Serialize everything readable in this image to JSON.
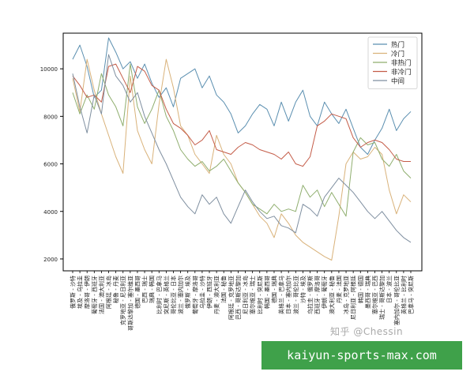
{
  "chart_data": {
    "type": "line",
    "ylim": [
      1500,
      11500
    ],
    "yticks": [
      2000,
      4000,
      6000,
      8000,
      10000
    ],
    "grid": false,
    "legend_position": "top-right",
    "categories": [
      "俄罗斯 - 沙特",
      "埃及 - 乌拉圭",
      "摩洛哥 - 伊朗",
      "葡萄牙 - 西班牙",
      "法国 - 澳大利亚",
      "阿根廷 - 冰岛",
      "秘鲁 - 丹麦",
      "克罗地亚 - 尼日利亚",
      "哥斯达黎加 - 塞尔维亚",
      "德国 - 墨西哥",
      "巴西 - 瑞士",
      "瑞典 - 韩国",
      "比利时 - 巴拿马",
      "突尼斯 - 英格兰",
      "哥伦比亚 - 日本",
      "波兰 - 塞内加尔",
      "俄罗斯 - 埃及",
      "葡萄牙 - 摩洛哥",
      "乌拉圭 - 沙特",
      "伊朗 - 西班牙",
      "丹麦 - 澳大利亚",
      "法国 - 秘鲁",
      "阿根廷 - 克罗地亚",
      "巴西 - 哥斯达黎加",
      "尼日利亚 - 冰岛",
      "塞尔维亚 - 瑞士",
      "比利时 - 突尼斯",
      "韩国 - 墨西哥",
      "德国 - 瑞典",
      "英格兰 - 巴拿马",
      "日本 - 塞内加尔",
      "波兰 - 哥伦比亚",
      "沙特 - 埃及",
      "乌拉圭 - 俄罗斯",
      "西班牙 - 摩洛哥",
      "伊朗 - 葡萄牙",
      "澳大利亚 - 秘鲁",
      "丹麦 - 法国",
      "冰岛 - 克罗地亚",
      "尼日利亚 - 阿根廷",
      "韩国 - 德国",
      "墨西哥 - 瑞典",
      "塞尔维亚 - 巴西",
      "瑞士 - 哥斯达黎加",
      "日本 - 波兰",
      "塞内加尔 - 哥伦比亚",
      "英格兰 - 比利时",
      "巴拿马 - 突尼斯"
    ],
    "series": [
      {
        "name": "热门",
        "color": "#5b8fb0",
        "values": [
          10400,
          11000,
          10100,
          8800,
          9100,
          11300,
          10700,
          10000,
          10300,
          9600,
          10200,
          9400,
          8800,
          9200,
          8400,
          9600,
          9800,
          10000,
          9200,
          9700,
          8900,
          8600,
          8100,
          7300,
          7600,
          8100,
          8500,
          8300,
          7600,
          8600,
          7800,
          8600,
          9100,
          8000,
          7600,
          8600,
          8100,
          7700,
          8300,
          7500,
          6700,
          6400,
          7000,
          7500,
          8300,
          7400,
          7900,
          8200
        ]
      },
      {
        "name": "冷门",
        "color": "#d9b27a",
        "values": [
          9600,
          8200,
          10400,
          9100,
          8100,
          7200,
          6300,
          5600,
          9700,
          7400,
          6600,
          6000,
          8500,
          10400,
          9200,
          7600,
          7200,
          6400,
          6000,
          5600,
          7200,
          6400,
          6000,
          5200,
          4800,
          4300,
          3800,
          3500,
          2900,
          3900,
          3500,
          3000,
          2700,
          2500,
          2300,
          2100,
          1950,
          3800,
          6000,
          6500,
          6200,
          6300,
          6700,
          6400,
          4900,
          3900,
          4700,
          4400
        ]
      },
      {
        "name": "非热门",
        "color": "#8fae6e",
        "values": [
          9000,
          8100,
          8900,
          8300,
          9800,
          8900,
          8400,
          7600,
          10200,
          8400,
          7700,
          8300,
          9100,
          8000,
          7400,
          6600,
          6200,
          5900,
          6100,
          5700,
          5900,
          6200,
          5700,
          5200,
          4800,
          4300,
          4100,
          3900,
          4300,
          4000,
          4100,
          4000,
          5100,
          4600,
          4900,
          4200,
          4800,
          4300,
          3800,
          6500,
          7100,
          6800,
          6900,
          6200,
          5900,
          6400,
          5700,
          5400
        ]
      },
      {
        "name": "非冷门",
        "color": "#c45c48",
        "values": [
          9700,
          9300,
          8800,
          8900,
          8600,
          10100,
          10200,
          9600,
          9000,
          10100,
          9900,
          9300,
          9100,
          8300,
          7700,
          7500,
          7200,
          6800,
          7000,
          7400,
          6600,
          6500,
          6400,
          6700,
          6900,
          6800,
          6600,
          6500,
          6400,
          6200,
          6500,
          6000,
          5900,
          6300,
          7600,
          7800,
          8100,
          8000,
          7900,
          7100,
          6700,
          6900,
          7000,
          6900,
          6600,
          6200,
          6100,
          6100
        ]
      },
      {
        "name": "中间",
        "color": "#7f8fa0",
        "values": [
          9800,
          8400,
          7300,
          8900,
          8100,
          10600,
          9700,
          9300,
          8600,
          9000,
          8000,
          7300,
          6600,
          6000,
          5300,
          4600,
          4200,
          3900,
          4700,
          4300,
          4600,
          3900,
          3500,
          4200,
          4900,
          4400,
          4000,
          3700,
          3800,
          3400,
          3300,
          3100,
          4300,
          4100,
          3800,
          4600,
          5000,
          5400,
          5100,
          4800,
          4400,
          4000,
          3700,
          4000,
          3600,
          3200,
          2900,
          2700
        ]
      }
    ]
  },
  "watermark": "知乎 @Chessin",
  "banner_text": "kaiyun-sports-max.com"
}
